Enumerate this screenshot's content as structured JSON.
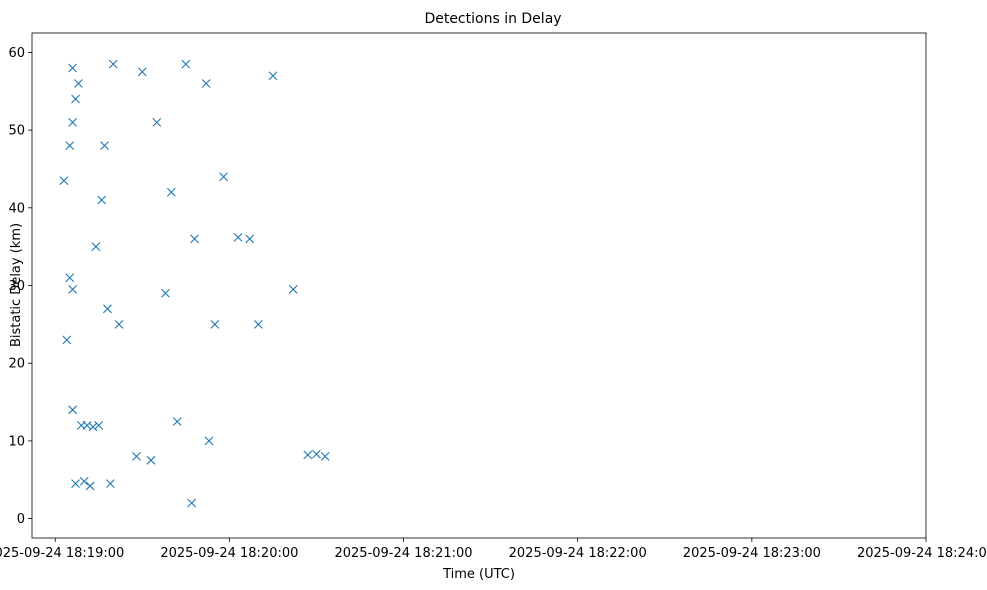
{
  "chart_data": {
    "type": "scatter",
    "title": "Detections in Delay",
    "xlabel": "Time (UTC)",
    "ylabel": "Bistatic Delay (km)",
    "marker": "x",
    "color": "#1f77b4",
    "x_is_time": true,
    "xlim": [
      "2025-09-24 18:18:52",
      "2025-09-24 18:24:00"
    ],
    "ylim": [
      -2.5,
      62.5
    ],
    "x_ticks": [
      "2025-09-24 18:19:00",
      "2025-09-24 18:20:00",
      "2025-09-24 18:21:00",
      "2025-09-24 18:22:00",
      "2025-09-24 18:23:00",
      "2025-09-24 18:24:00"
    ],
    "y_ticks": [
      "0",
      "10",
      "20",
      "30",
      "40",
      "50",
      "60"
    ],
    "grid": false,
    "legend": "none",
    "points": [
      {
        "x": "2025-09-24 18:19:05",
        "y": 48
      },
      {
        "x": "2025-09-24 18:19:06",
        "y": 58
      },
      {
        "x": "2025-09-24 18:19:08",
        "y": 56
      },
      {
        "x": "2025-09-24 18:19:07",
        "y": 54
      },
      {
        "x": "2025-09-24 18:19:06",
        "y": 51
      },
      {
        "x": "2025-09-24 18:19:03",
        "y": 43.5
      },
      {
        "x": "2025-09-24 18:19:05",
        "y": 31
      },
      {
        "x": "2025-09-24 18:19:06",
        "y": 29.5
      },
      {
        "x": "2025-09-24 18:19:04",
        "y": 23
      },
      {
        "x": "2025-09-24 18:19:06",
        "y": 14
      },
      {
        "x": "2025-09-24 18:19:09",
        "y": 12
      },
      {
        "x": "2025-09-24 18:19:11",
        "y": 12
      },
      {
        "x": "2025-09-24 18:19:13",
        "y": 11.8
      },
      {
        "x": "2025-09-24 18:19:15",
        "y": 12
      },
      {
        "x": "2025-09-24 18:19:07",
        "y": 4.5
      },
      {
        "x": "2025-09-24 18:19:10",
        "y": 4.8
      },
      {
        "x": "2025-09-24 18:19:12",
        "y": 4.2
      },
      {
        "x": "2025-09-24 18:19:19",
        "y": 4.5
      },
      {
        "x": "2025-09-24 18:19:17",
        "y": 48
      },
      {
        "x": "2025-09-24 18:19:20",
        "y": 58.5
      },
      {
        "x": "2025-09-24 18:19:16",
        "y": 41
      },
      {
        "x": "2025-09-24 18:19:14",
        "y": 35
      },
      {
        "x": "2025-09-24 18:19:18",
        "y": 27
      },
      {
        "x": "2025-09-24 18:19:22",
        "y": 25
      },
      {
        "x": "2025-09-24 18:19:28",
        "y": 8
      },
      {
        "x": "2025-09-24 18:19:33",
        "y": 7.5
      },
      {
        "x": "2025-09-24 18:19:30",
        "y": 57.5
      },
      {
        "x": "2025-09-24 18:19:35",
        "y": 51
      },
      {
        "x": "2025-09-24 18:19:40",
        "y": 42
      },
      {
        "x": "2025-09-24 18:19:38",
        "y": 29
      },
      {
        "x": "2025-09-24 18:19:42",
        "y": 12.5
      },
      {
        "x": "2025-09-24 18:19:47",
        "y": 2
      },
      {
        "x": "2025-09-24 18:19:45",
        "y": 58.5
      },
      {
        "x": "2025-09-24 18:19:52",
        "y": 56
      },
      {
        "x": "2025-09-24 18:19:48",
        "y": 36
      },
      {
        "x": "2025-09-24 18:19:55",
        "y": 25
      },
      {
        "x": "2025-09-24 18:19:53",
        "y": 10
      },
      {
        "x": "2025-09-24 18:19:58",
        "y": 44
      },
      {
        "x": "2025-09-24 18:20:03",
        "y": 36.2
      },
      {
        "x": "2025-09-24 18:20:07",
        "y": 36
      },
      {
        "x": "2025-09-24 18:20:10",
        "y": 25
      },
      {
        "x": "2025-09-24 18:20:15",
        "y": 57
      },
      {
        "x": "2025-09-24 18:20:22",
        "y": 29.5
      },
      {
        "x": "2025-09-24 18:20:27",
        "y": 8.2
      },
      {
        "x": "2025-09-24 18:20:30",
        "y": 8.3
      },
      {
        "x": "2025-09-24 18:20:33",
        "y": 8
      }
    ]
  }
}
